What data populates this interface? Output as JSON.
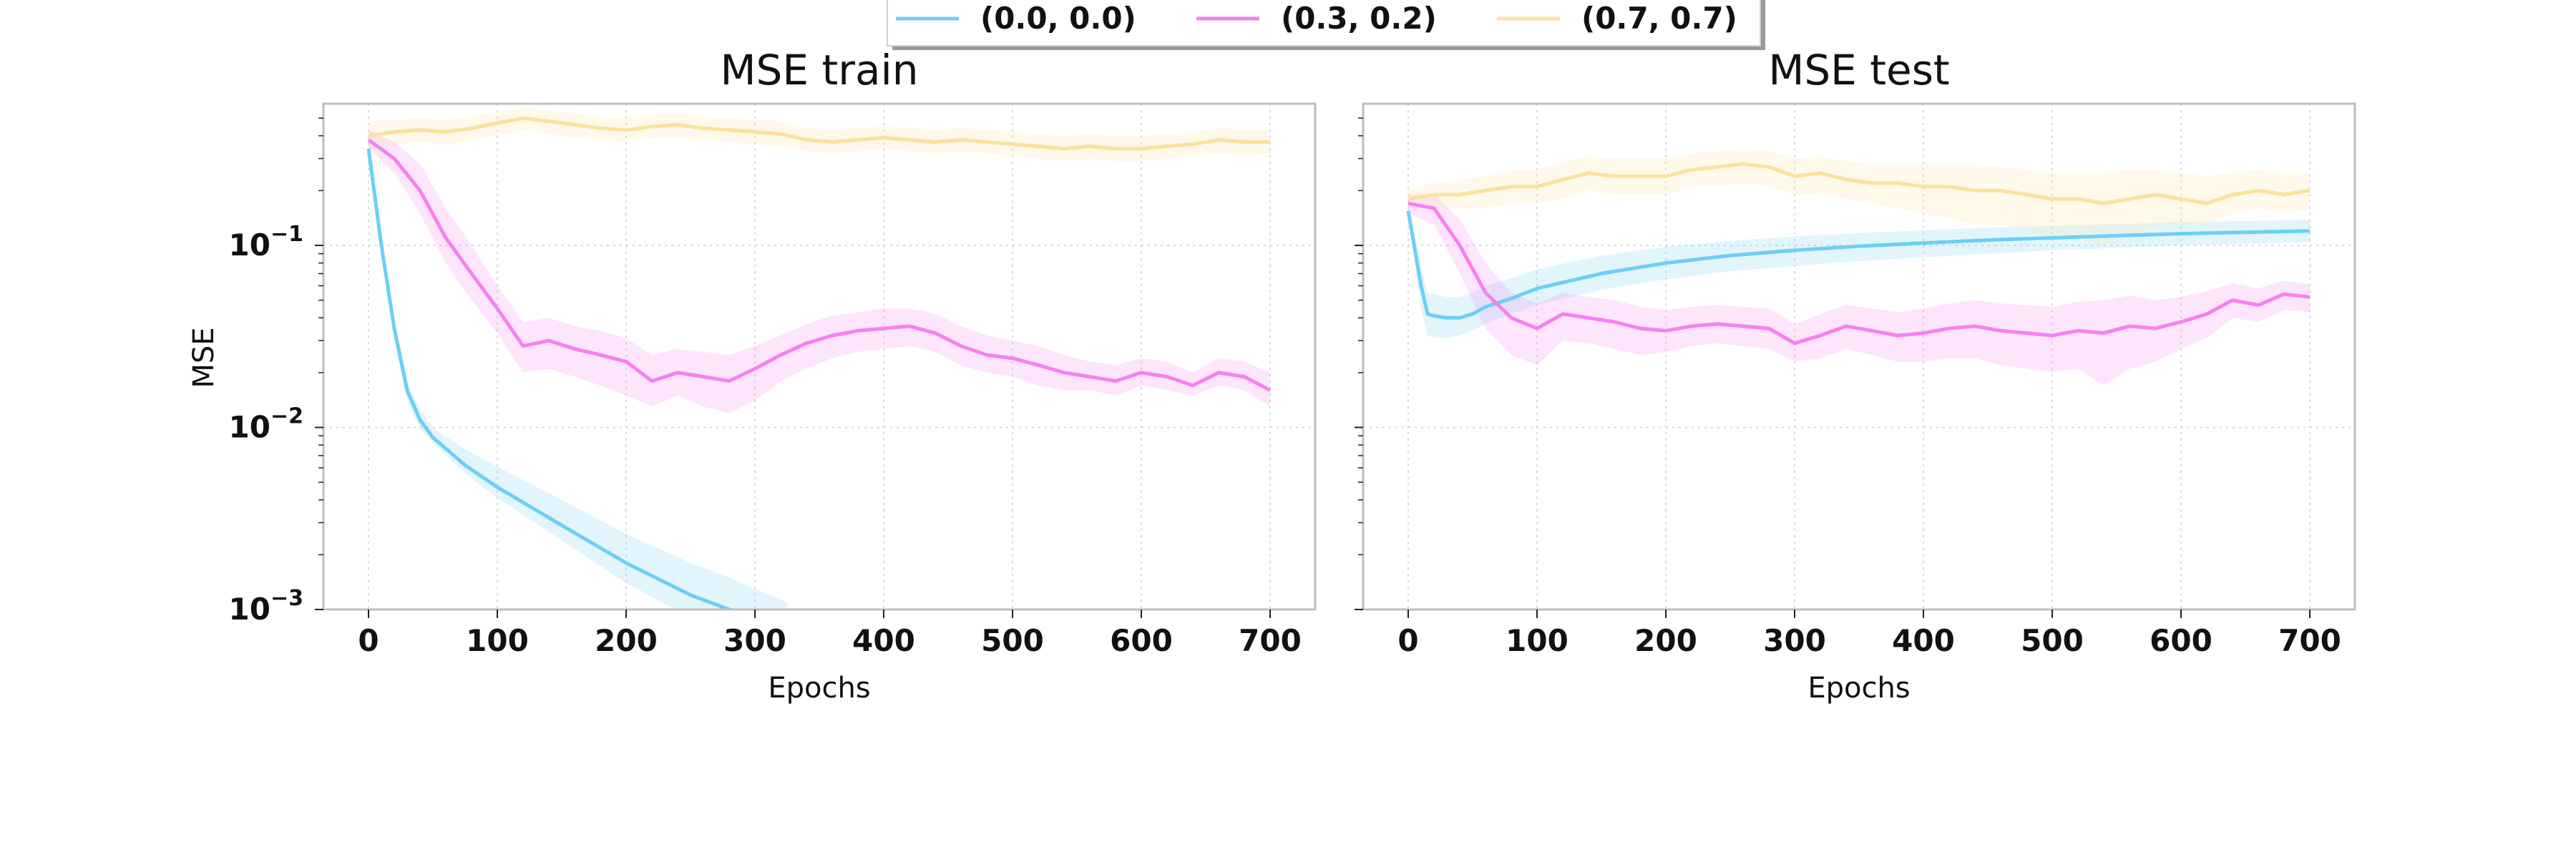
{
  "colors": {
    "series_0": "#6ccff6",
    "series_1": "#f77ff0",
    "series_2": "#fbe19c",
    "frame": "#bdbdbd",
    "grid": "#d9d9d9"
  },
  "legend": {
    "placement": "top-center",
    "entries": [
      "(0.0, 0.0)",
      "(0.3, 0.2)",
      "(0.7, 0.7)"
    ]
  },
  "chart_data": [
    {
      "type": "line",
      "title": "MSE train",
      "xlabel": "Epochs",
      "ylabel": "MSE",
      "xlim": [
        -35,
        735
      ],
      "ylim": [
        0.001,
        0.6
      ],
      "yscale": "log",
      "grid": true,
      "xticks": [
        0,
        100,
        200,
        300,
        400,
        500,
        600,
        700
      ],
      "xtick_labels": [
        "0",
        "100",
        "200",
        "300",
        "400",
        "500",
        "600",
        "700"
      ],
      "yticks": [
        0.001,
        0.01,
        0.1
      ],
      "ytick_labels": [
        {
          "base": "10",
          "exp": "−3"
        },
        {
          "base": "10",
          "exp": "−2"
        },
        {
          "base": "10",
          "exp": "−1"
        }
      ],
      "series": [
        {
          "name": "(0.0, 0.0)",
          "x": [
            0,
            10,
            20,
            30,
            40,
            50,
            75,
            100,
            150,
            200,
            250,
            280,
            300,
            325
          ],
          "y": [
            0.34,
            0.1,
            0.035,
            0.016,
            0.011,
            0.0088,
            0.0062,
            0.0047,
            0.0029,
            0.0018,
            0.0012,
            0.001,
            0.00088,
            0.00075
          ],
          "band_low": [
            0.3,
            0.09,
            0.031,
            0.014,
            0.0098,
            0.0082,
            0.0056,
            0.0041,
            0.0024,
            0.0014,
            0.0009,
            0.00076,
            0.00066,
            0.00055
          ],
          "band_high": [
            0.38,
            0.11,
            0.04,
            0.018,
            0.0125,
            0.01,
            0.0076,
            0.0061,
            0.004,
            0.0026,
            0.0018,
            0.0015,
            0.0013,
            0.0011
          ]
        },
        {
          "name": "(0.3, 0.2)",
          "x": [
            0,
            20,
            40,
            60,
            80,
            100,
            120,
            140,
            160,
            180,
            200,
            220,
            240,
            260,
            280,
            300,
            320,
            340,
            360,
            380,
            400,
            420,
            440,
            460,
            480,
            500,
            520,
            540,
            560,
            580,
            600,
            620,
            640,
            660,
            680,
            700
          ],
          "y": [
            0.38,
            0.3,
            0.2,
            0.11,
            0.07,
            0.045,
            0.028,
            0.03,
            0.027,
            0.025,
            0.023,
            0.018,
            0.02,
            0.019,
            0.018,
            0.021,
            0.025,
            0.029,
            0.032,
            0.034,
            0.035,
            0.036,
            0.033,
            0.028,
            0.025,
            0.024,
            0.022,
            0.02,
            0.019,
            0.018,
            0.02,
            0.019,
            0.017,
            0.02,
            0.019,
            0.016
          ],
          "band_low": [
            0.34,
            0.25,
            0.15,
            0.08,
            0.05,
            0.033,
            0.02,
            0.021,
            0.019,
            0.017,
            0.015,
            0.013,
            0.015,
            0.013,
            0.012,
            0.014,
            0.018,
            0.021,
            0.024,
            0.026,
            0.027,
            0.028,
            0.026,
            0.022,
            0.02,
            0.019,
            0.017,
            0.016,
            0.016,
            0.015,
            0.017,
            0.016,
            0.015,
            0.017,
            0.016,
            0.013
          ],
          "band_high": [
            0.43,
            0.37,
            0.28,
            0.16,
            0.1,
            0.06,
            0.038,
            0.04,
            0.036,
            0.034,
            0.031,
            0.025,
            0.027,
            0.026,
            0.025,
            0.028,
            0.032,
            0.037,
            0.041,
            0.043,
            0.045,
            0.045,
            0.042,
            0.036,
            0.032,
            0.03,
            0.028,
            0.025,
            0.023,
            0.022,
            0.024,
            0.023,
            0.02,
            0.024,
            0.023,
            0.02
          ]
        },
        {
          "name": "(0.7, 0.7)",
          "x": [
            0,
            20,
            40,
            60,
            80,
            100,
            120,
            140,
            160,
            180,
            200,
            220,
            240,
            260,
            280,
            300,
            320,
            340,
            360,
            380,
            400,
            420,
            440,
            460,
            480,
            500,
            520,
            540,
            560,
            580,
            600,
            620,
            640,
            660,
            680,
            700
          ],
          "y": [
            0.4,
            0.42,
            0.43,
            0.42,
            0.44,
            0.47,
            0.5,
            0.48,
            0.46,
            0.44,
            0.43,
            0.45,
            0.46,
            0.44,
            0.43,
            0.42,
            0.41,
            0.38,
            0.37,
            0.38,
            0.39,
            0.38,
            0.37,
            0.38,
            0.37,
            0.36,
            0.35,
            0.34,
            0.35,
            0.34,
            0.34,
            0.35,
            0.36,
            0.38,
            0.37,
            0.37
          ],
          "band_low": [
            0.33,
            0.36,
            0.37,
            0.36,
            0.38,
            0.4,
            0.43,
            0.41,
            0.39,
            0.38,
            0.37,
            0.39,
            0.39,
            0.38,
            0.37,
            0.36,
            0.35,
            0.33,
            0.32,
            0.33,
            0.34,
            0.33,
            0.32,
            0.33,
            0.32,
            0.31,
            0.3,
            0.29,
            0.3,
            0.29,
            0.29,
            0.3,
            0.31,
            0.32,
            0.31,
            0.32
          ],
          "band_high": [
            0.48,
            0.49,
            0.5,
            0.49,
            0.51,
            0.54,
            0.57,
            0.55,
            0.53,
            0.51,
            0.5,
            0.52,
            0.53,
            0.51,
            0.5,
            0.49,
            0.48,
            0.44,
            0.43,
            0.44,
            0.45,
            0.44,
            0.43,
            0.44,
            0.43,
            0.42,
            0.41,
            0.4,
            0.41,
            0.4,
            0.4,
            0.41,
            0.42,
            0.44,
            0.43,
            0.43
          ]
        }
      ]
    },
    {
      "type": "line",
      "title": "MSE test",
      "xlabel": "Epochs",
      "ylabel": "",
      "xlim": [
        -35,
        735
      ],
      "ylim": [
        0.001,
        0.6
      ],
      "yscale": "log",
      "grid": true,
      "xticks": [
        0,
        100,
        200,
        300,
        400,
        500,
        600,
        700
      ],
      "xtick_labels": [
        "0",
        "100",
        "200",
        "300",
        "400",
        "500",
        "600",
        "700"
      ],
      "yticks": [
        0.001,
        0.01,
        0.1
      ],
      "ytick_labels": [],
      "series": [
        {
          "name": "(0.0, 0.0)",
          "x": [
            0,
            10,
            15,
            20,
            30,
            40,
            50,
            60,
            80,
            100,
            150,
            200,
            250,
            300,
            350,
            400,
            450,
            500,
            550,
            600,
            650,
            700
          ],
          "y": [
            0.155,
            0.06,
            0.042,
            0.041,
            0.04,
            0.04,
            0.042,
            0.046,
            0.051,
            0.058,
            0.07,
            0.08,
            0.088,
            0.094,
            0.099,
            0.103,
            0.107,
            0.11,
            0.113,
            0.116,
            0.118,
            0.12
          ],
          "band_low": [
            0.14,
            0.045,
            0.032,
            0.031,
            0.031,
            0.032,
            0.034,
            0.037,
            0.042,
            0.047,
            0.057,
            0.065,
            0.072,
            0.077,
            0.082,
            0.086,
            0.09,
            0.094,
            0.097,
            0.1,
            0.102,
            0.104
          ],
          "band_high": [
            0.17,
            0.075,
            0.055,
            0.054,
            0.052,
            0.052,
            0.055,
            0.06,
            0.066,
            0.074,
            0.088,
            0.098,
            0.106,
            0.112,
            0.117,
            0.121,
            0.125,
            0.128,
            0.131,
            0.134,
            0.136,
            0.138
          ]
        },
        {
          "name": "(0.3, 0.2)",
          "x": [
            0,
            20,
            40,
            60,
            80,
            100,
            120,
            140,
            160,
            180,
            200,
            220,
            240,
            260,
            280,
            300,
            320,
            340,
            360,
            380,
            400,
            420,
            440,
            460,
            480,
            500,
            520,
            540,
            560,
            580,
            600,
            620,
            640,
            660,
            680,
            700
          ],
          "y": [
            0.17,
            0.16,
            0.1,
            0.055,
            0.04,
            0.035,
            0.042,
            0.04,
            0.038,
            0.035,
            0.034,
            0.036,
            0.037,
            0.036,
            0.035,
            0.029,
            0.032,
            0.036,
            0.034,
            0.032,
            0.033,
            0.035,
            0.036,
            0.034,
            0.033,
            0.032,
            0.034,
            0.033,
            0.036,
            0.035,
            0.038,
            0.042,
            0.05,
            0.047,
            0.054,
            0.052
          ],
          "band_low": [
            0.15,
            0.13,
            0.07,
            0.035,
            0.025,
            0.022,
            0.03,
            0.029,
            0.027,
            0.025,
            0.026,
            0.028,
            0.029,
            0.028,
            0.027,
            0.023,
            0.024,
            0.027,
            0.025,
            0.023,
            0.023,
            0.024,
            0.024,
            0.022,
            0.021,
            0.02,
            0.021,
            0.017,
            0.021,
            0.023,
            0.027,
            0.031,
            0.04,
            0.038,
            0.044,
            0.043
          ],
          "band_high": [
            0.19,
            0.19,
            0.14,
            0.08,
            0.055,
            0.048,
            0.055,
            0.052,
            0.05,
            0.046,
            0.044,
            0.046,
            0.047,
            0.046,
            0.045,
            0.037,
            0.042,
            0.047,
            0.045,
            0.043,
            0.045,
            0.048,
            0.05,
            0.048,
            0.047,
            0.046,
            0.049,
            0.05,
            0.053,
            0.05,
            0.052,
            0.056,
            0.062,
            0.058,
            0.064,
            0.061
          ]
        },
        {
          "name": "(0.7, 0.7)",
          "x": [
            0,
            20,
            40,
            60,
            80,
            100,
            120,
            140,
            160,
            180,
            200,
            220,
            240,
            260,
            280,
            300,
            320,
            340,
            360,
            380,
            400,
            420,
            440,
            460,
            480,
            500,
            520,
            540,
            560,
            580,
            600,
            620,
            640,
            660,
            680,
            700
          ],
          "y": [
            0.18,
            0.19,
            0.19,
            0.2,
            0.21,
            0.21,
            0.23,
            0.25,
            0.24,
            0.24,
            0.24,
            0.26,
            0.27,
            0.28,
            0.27,
            0.24,
            0.25,
            0.23,
            0.22,
            0.22,
            0.21,
            0.21,
            0.2,
            0.2,
            0.19,
            0.18,
            0.18,
            0.17,
            0.18,
            0.19,
            0.18,
            0.17,
            0.19,
            0.2,
            0.19,
            0.2
          ],
          "band_low": [
            0.16,
            0.16,
            0.16,
            0.16,
            0.17,
            0.17,
            0.18,
            0.2,
            0.19,
            0.19,
            0.19,
            0.21,
            0.21,
            0.22,
            0.21,
            0.19,
            0.19,
            0.18,
            0.17,
            0.16,
            0.15,
            0.14,
            0.13,
            0.13,
            0.12,
            0.11,
            0.11,
            0.1,
            0.11,
            0.13,
            0.13,
            0.13,
            0.15,
            0.16,
            0.15,
            0.16
          ],
          "band_high": [
            0.2,
            0.22,
            0.23,
            0.24,
            0.26,
            0.26,
            0.29,
            0.31,
            0.3,
            0.3,
            0.3,
            0.32,
            0.33,
            0.34,
            0.33,
            0.3,
            0.31,
            0.29,
            0.28,
            0.28,
            0.28,
            0.28,
            0.28,
            0.27,
            0.26,
            0.25,
            0.25,
            0.25,
            0.26,
            0.26,
            0.25,
            0.24,
            0.25,
            0.26,
            0.25,
            0.25
          ]
        }
      ]
    }
  ]
}
